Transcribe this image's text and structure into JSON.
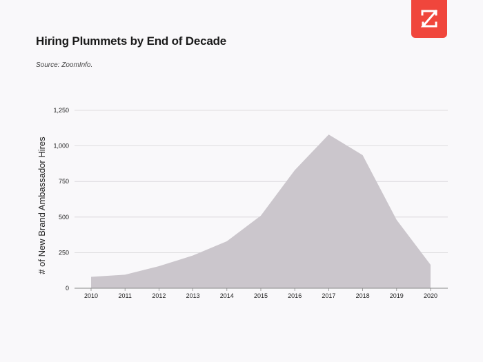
{
  "header": {
    "title": "Hiring Plummets by End of Decade",
    "source": "Source: ZoomInfo."
  },
  "logo": {
    "icon": "zoominfo-z-icon",
    "color": "#f0463c"
  },
  "chart_data": {
    "type": "area",
    "title": "Hiring Plummets by End of Decade",
    "xlabel": "",
    "ylabel": "# of New  Brand Ambassador Hires",
    "x": [
      "2010",
      "2011",
      "2012",
      "2013",
      "2014",
      "2015",
      "2016",
      "2017",
      "2018",
      "2019",
      "2020"
    ],
    "series": [
      {
        "values": [
          80,
          95,
          155,
          230,
          330,
          510,
          830,
          1080,
          935,
          480,
          165
        ],
        "color": "#cbc6cc"
      }
    ],
    "ylim": [
      0,
      1250
    ],
    "yticks": [
      0,
      250,
      500,
      750,
      1000,
      1250
    ],
    "ytick_labels": [
      "0",
      "250",
      "500",
      "750",
      "1,000",
      "1,250"
    ],
    "grid": true,
    "legend": "none"
  }
}
